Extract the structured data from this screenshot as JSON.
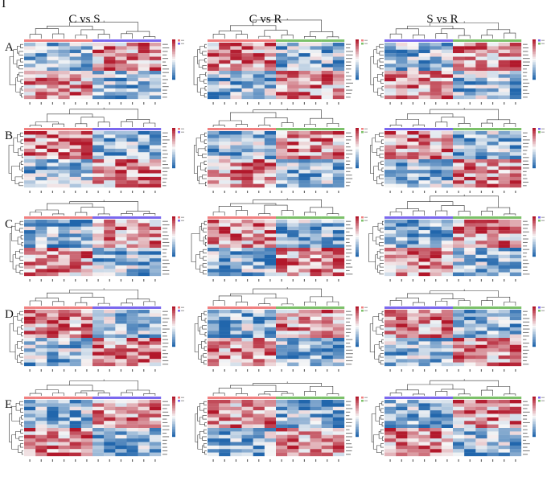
{
  "figure_label": "I",
  "columns": [
    {
      "title": "C vs S",
      "groups": [
        "C",
        "S"
      ]
    },
    {
      "title": "C vs R",
      "groups": [
        "C",
        "R"
      ]
    },
    {
      "title": "S vs R",
      "groups": [
        "S",
        "R"
      ]
    }
  ],
  "rows": [
    "A",
    "B",
    "C",
    "D",
    "E"
  ],
  "colors": {
    "low": "#2166ac",
    "mid": "#f7f7f7",
    "high": "#b2182b",
    "group_C": "#f08080",
    "group_S": "#7b68ee",
    "group_R": "#7cc16a",
    "dendrogram": "#333333"
  },
  "chart_data": {
    "type": "heatmap",
    "title": "",
    "value_range": [
      -3,
      3
    ],
    "n_samples": 12,
    "n_features": 16,
    "annotation_groups": [
      "C",
      "S",
      "R"
    ],
    "panel_layout": "5 rows (A–E) × 3 columns (C vs S, C vs R, S vs R)"
  }
}
